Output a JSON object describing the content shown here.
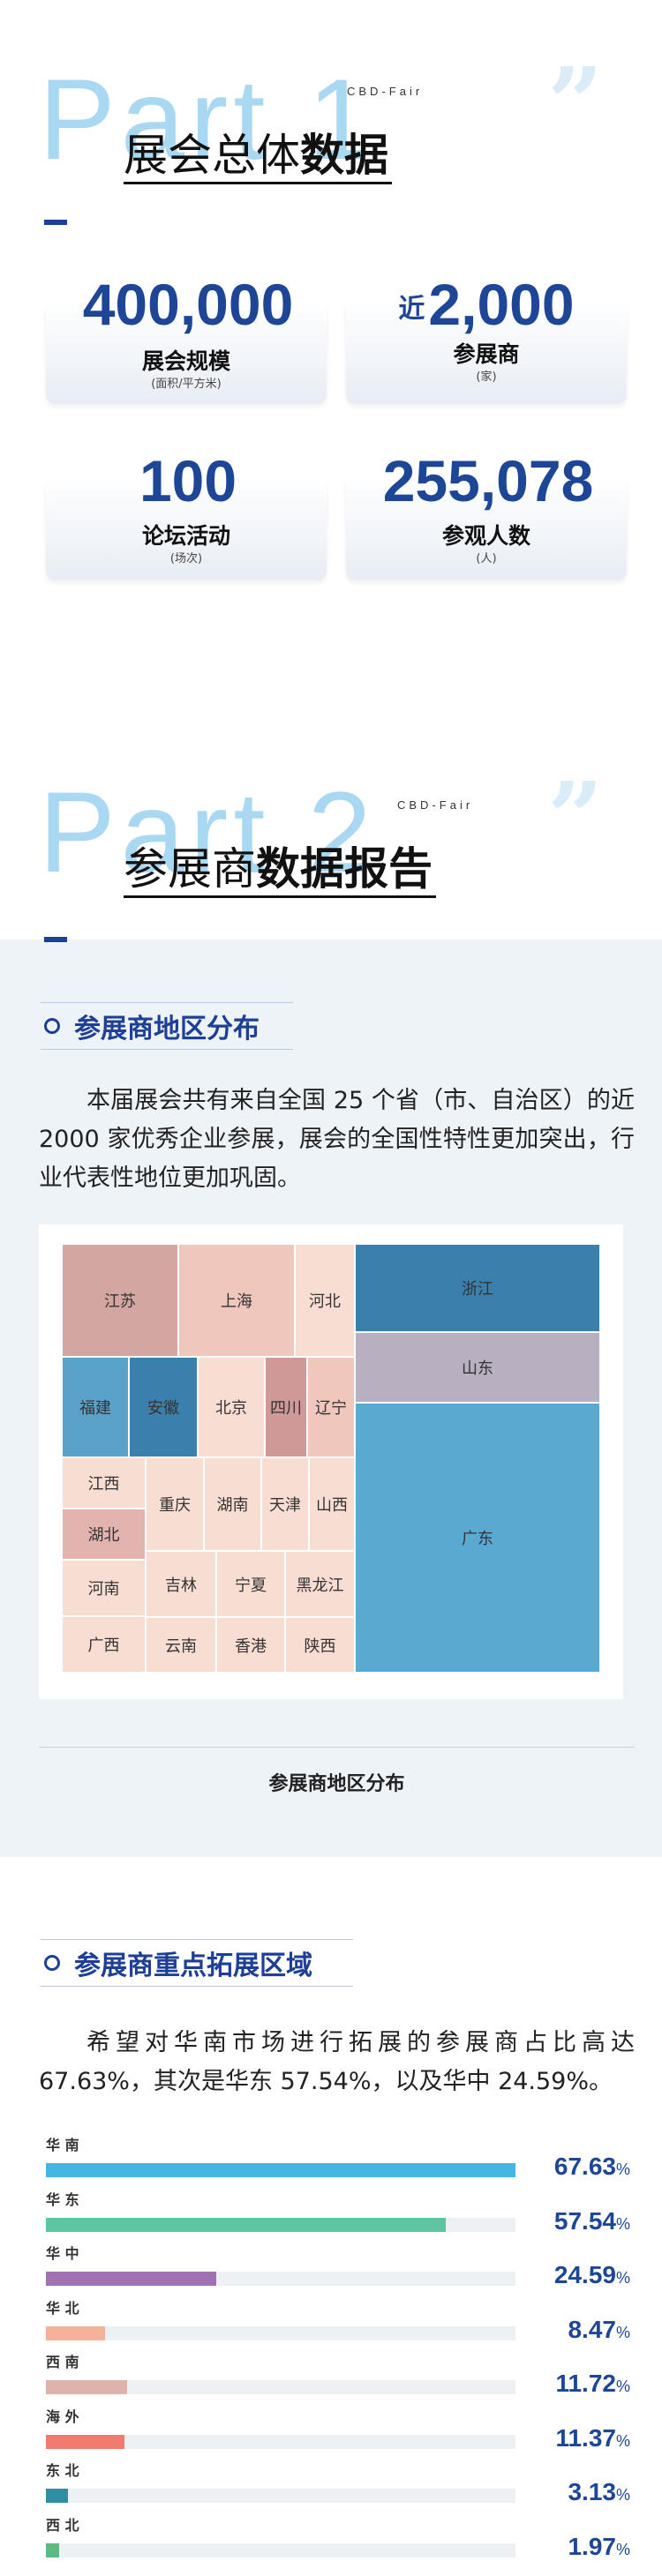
{
  "part1": {
    "part_label": "Part 1",
    "tag": "CBD-Fair",
    "title_normal": "展会总体",
    "title_bold": "数据"
  },
  "stats": [
    {
      "prefix": "",
      "number": "400,000",
      "label": "展会规模",
      "unit": "(面积/平方米)"
    },
    {
      "prefix": "近",
      "number": "2,000",
      "label": "参展商",
      "unit": "(家)"
    },
    {
      "prefix": "",
      "number": "100",
      "label": "论坛活动",
      "unit": "(场次)"
    },
    {
      "prefix": "",
      "number": "255,078",
      "label": "参观人数",
      "unit": "(人)"
    }
  ],
  "part2": {
    "part_label": "Part 2",
    "tag": "CBD-Fair",
    "title_normal": "参展商",
    "title_bold": "数据报告"
  },
  "region_section": {
    "title": "参展商地区分布",
    "paragraph": "本届展会共有来自全国 25 个省（市、自治区）的近 2000 家优秀企业参展，展会的全国性特性更加突出，行业代表性地位更加巩固。",
    "caption": "参展商地区分布"
  },
  "colors": {
    "accent": "#1e3f96",
    "number": "#1d4697",
    "part_watermark": "#a9d8f3"
  },
  "chart_data": [
    {
      "type": "treemap",
      "title": "参展商地区分布",
      "regions": [
        {
          "name": "江苏",
          "color": "#d4a6a2"
        },
        {
          "name": "上海",
          "color": "#efc7bd"
        },
        {
          "name": "河北",
          "color": "#f8ddd3"
        },
        {
          "name": "浙江",
          "color": "#3b7fac"
        },
        {
          "name": "山东",
          "color": "#b8afc1"
        },
        {
          "name": "福建",
          "color": "#5aa2c9"
        },
        {
          "name": "安徽",
          "color": "#3b7fac"
        },
        {
          "name": "北京",
          "color": "#f8ddd3"
        },
        {
          "name": "四川",
          "color": "#cf9997"
        },
        {
          "name": "辽宁",
          "color": "#efc7bd"
        },
        {
          "name": "广东",
          "color": "#5aa9d0"
        },
        {
          "name": "江西",
          "color": "#f8ddd3"
        },
        {
          "name": "湖北",
          "color": "#e3b4ae"
        },
        {
          "name": "河南",
          "color": "#f8ddd3"
        },
        {
          "name": "广西",
          "color": "#f8ddd3"
        },
        {
          "name": "重庆",
          "color": "#f8ddd3"
        },
        {
          "name": "湖南",
          "color": "#f8ddd3"
        },
        {
          "name": "天津",
          "color": "#f8ddd3"
        },
        {
          "name": "山西",
          "color": "#f8ddd3"
        },
        {
          "name": "吉林",
          "color": "#f8ddd3"
        },
        {
          "name": "宁夏",
          "color": "#f8ddd3"
        },
        {
          "name": "黑龙江",
          "color": "#f8ddd3"
        },
        {
          "name": "云南",
          "color": "#f8ddd3"
        },
        {
          "name": "香港",
          "color": "#f8ddd3"
        },
        {
          "name": "陕西",
          "color": "#f8ddd3"
        }
      ]
    },
    {
      "type": "bar",
      "title": "参展商重点拓展区域",
      "categories": [
        "华南",
        "华东",
        "华中",
        "华北",
        "西南",
        "海外",
        "东北",
        "西北"
      ],
      "values": [
        67.63,
        57.54,
        24.59,
        8.47,
        11.72,
        11.37,
        3.13,
        1.97
      ],
      "colors": [
        "#45b6e0",
        "#5cc6a3",
        "#a072b4",
        "#f5b199",
        "#dfb2ae",
        "#f07b6e",
        "#2f8ea3",
        "#5dbb7f"
      ],
      "unit": "%",
      "xlim": [
        0,
        100
      ]
    }
  ],
  "expansion_section": {
    "title": "参展商重点拓展区域",
    "paragraph": "希望对华南市场进行拓展的参展商占比高达 67.63%，其次是华东 57.54%，以及华中 24.59%。"
  }
}
